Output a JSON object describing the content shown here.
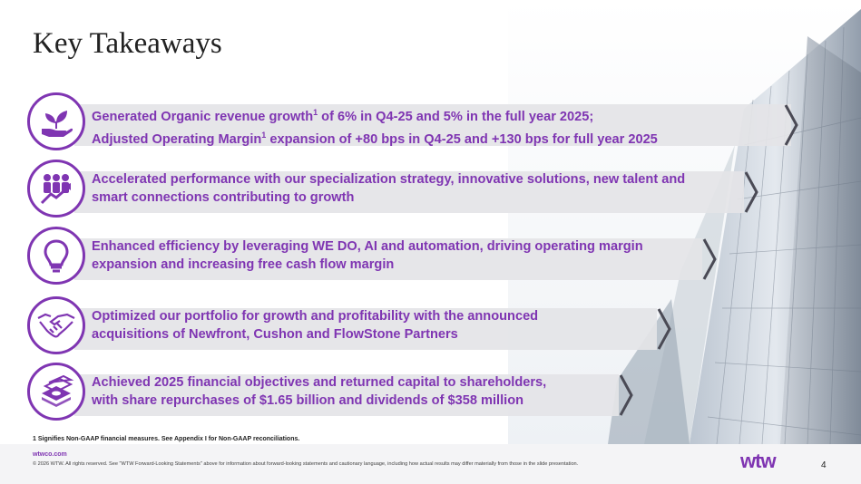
{
  "slide": {
    "title": "Key Takeaways",
    "page_number": "4"
  },
  "takeaways": [
    {
      "icon": "plant-in-hand-icon",
      "line1_pre": "Generated Organic revenue growth",
      "line1_sup": "1",
      "line1_post": " of 6% in Q4-25 and 5% in the full year 2025;",
      "line2_pre": "Adjusted Operating Margin",
      "line2_sup": "1",
      "line2_post": " expansion of +80 bps in Q4-25 and +130 bps for full year 2025"
    },
    {
      "icon": "people-growth-icon",
      "line1": "Accelerated performance with our specialization strategy, innovative solutions, new talent and",
      "line2": "smart connections contributing to growth"
    },
    {
      "icon": "lightbulb-icon",
      "line1": "Enhanced efficiency by leveraging WE DO, AI and automation, driving operating margin",
      "line2": "expansion and increasing free cash flow margin"
    },
    {
      "icon": "handshake-icon",
      "line1": "Optimized our portfolio for growth and profitability with the announced",
      "line2": "acquisitions of Newfront, Cushon and FlowStone Partners"
    },
    {
      "icon": "money-stack-icon",
      "line1": "Achieved 2025 financial objectives and returned capital to shareholders,",
      "line2": "with share repurchases of $1.65 billion and dividends of $358 million"
    }
  ],
  "footnote": "1 Signifies Non-GAAP financial measures. See Appendix I for Non-GAAP reconciliations.",
  "footer": {
    "url": "wtwco.com",
    "copyright": "© 2026 WTW. All rights reserved. See \"WTW Forward-Looking Statements\" above for information about forward-looking statements and cautionary language, including how actual results may differ materially from those in the slide presentation.",
    "logo_text": "wtw"
  },
  "colors": {
    "accent": "#7f35b2",
    "bar": "#e4e4e7",
    "arrow": "#4a4a55"
  }
}
